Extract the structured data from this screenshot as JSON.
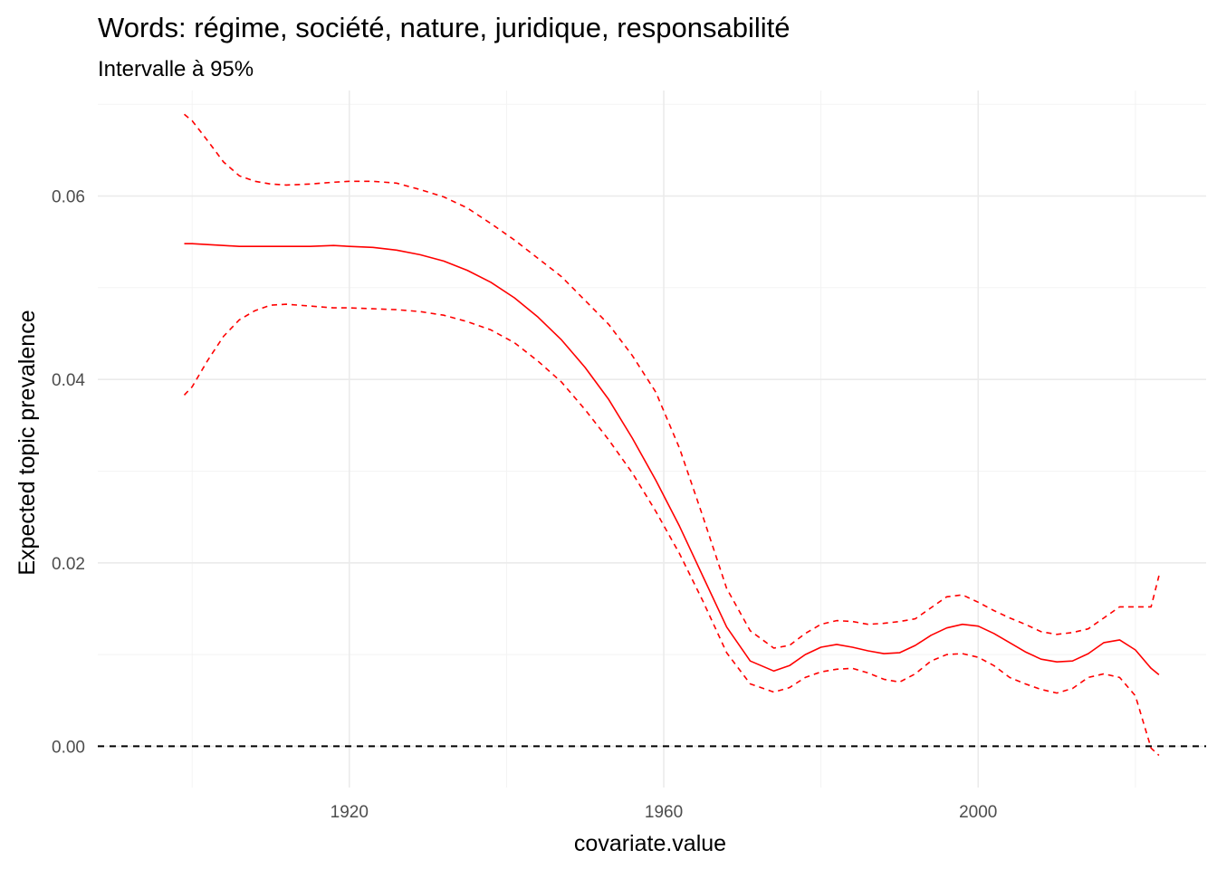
{
  "chart_data": {
    "type": "line",
    "title": "Words: régime, société, nature, juridique, responsabilité",
    "subtitle": "Intervalle à 95%",
    "xlabel": "covariate.value",
    "ylabel": "Expected topic prevalence",
    "xlim": [
      1888,
      2029
    ],
    "ylim": [
      -0.0045,
      0.0715
    ],
    "x_ticks": [
      1920,
      1960,
      2000
    ],
    "x_tick_labels": [
      "1920",
      "1960",
      "2000"
    ],
    "y_ticks": [
      0,
      0.02,
      0.04,
      0.06
    ],
    "y_tick_labels": [
      "0.00",
      "0.02",
      "0.04",
      "0.06"
    ],
    "grid": true,
    "legend": "none",
    "reference_line": {
      "y": 0,
      "style": "dashed",
      "color": "#000000"
    },
    "color": "#ff0000",
    "x": [
      1899,
      1900,
      1902,
      1904,
      1906,
      1908,
      1910,
      1912,
      1915,
      1918,
      1920,
      1923,
      1926,
      1929,
      1932,
      1935,
      1938,
      1941,
      1944,
      1947,
      1950,
      1953,
      1956,
      1959,
      1962,
      1965,
      1968,
      1971,
      1974,
      1976,
      1978,
      1980,
      1982,
      1984,
      1986,
      1988,
      1990,
      1992,
      1994,
      1996,
      1998,
      2000,
      2002,
      2004,
      2006,
      2008,
      2010,
      2012,
      2014,
      2016,
      2018,
      2020,
      2022,
      2023
    ],
    "series": [
      {
        "line_style": "solid",
        "values": [
          0.0548,
          0.0548,
          0.0547,
          0.0546,
          0.0545,
          0.0545,
          0.0545,
          0.0545,
          0.0545,
          0.0546,
          0.0545,
          0.0544,
          0.0541,
          0.0536,
          0.0529,
          0.0519,
          0.0506,
          0.0489,
          0.0468,
          0.0443,
          0.0413,
          0.0378,
          0.0336,
          0.029,
          0.024,
          0.0185,
          0.013,
          0.0093,
          0.0082,
          0.0088,
          0.01,
          0.0108,
          0.0111,
          0.0108,
          0.0104,
          0.0101,
          0.0102,
          0.011,
          0.0121,
          0.0129,
          0.0133,
          0.0131,
          0.0123,
          0.0113,
          0.0103,
          0.0095,
          0.0092,
          0.0093,
          0.0101,
          0.0113,
          0.0116,
          0.0105,
          0.0085,
          0.0078
        ]
      },
      {
        "line_style": "dashed",
        "values": [
          0.0689,
          0.0682,
          0.066,
          0.0637,
          0.0622,
          0.0616,
          0.0613,
          0.0612,
          0.0613,
          0.0615,
          0.0616,
          0.0616,
          0.0614,
          0.0607,
          0.0599,
          0.0587,
          0.057,
          0.0552,
          0.0532,
          0.0512,
          0.0486,
          0.046,
          0.0426,
          0.0386,
          0.0325,
          0.025,
          0.0172,
          0.0126,
          0.0107,
          0.011,
          0.0123,
          0.0133,
          0.0137,
          0.0136,
          0.0133,
          0.0134,
          0.0136,
          0.0139,
          0.0151,
          0.0163,
          0.0165,
          0.0157,
          0.0148,
          0.014,
          0.0133,
          0.0125,
          0.0122,
          0.0124,
          0.0128,
          0.014,
          0.0152,
          0.0152,
          0.0152,
          0.0186
        ]
      },
      {
        "line_style": "dashed",
        "values": [
          0.0383,
          0.0392,
          0.0421,
          0.0447,
          0.0465,
          0.0475,
          0.0481,
          0.0482,
          0.048,
          0.0478,
          0.0478,
          0.0477,
          0.0476,
          0.0474,
          0.047,
          0.0463,
          0.0454,
          0.044,
          0.042,
          0.0397,
          0.0367,
          0.0334,
          0.0298,
          0.0256,
          0.021,
          0.0158,
          0.0102,
          0.0068,
          0.0059,
          0.0064,
          0.0075,
          0.0081,
          0.0084,
          0.0085,
          0.008,
          0.0073,
          0.007,
          0.0079,
          0.0093,
          0.01,
          0.0101,
          0.0097,
          0.0088,
          0.0075,
          0.0068,
          0.0062,
          0.0058,
          0.0063,
          0.0075,
          0.0079,
          0.0075,
          0.0055,
          -0.0002,
          -0.001
        ]
      }
    ]
  }
}
